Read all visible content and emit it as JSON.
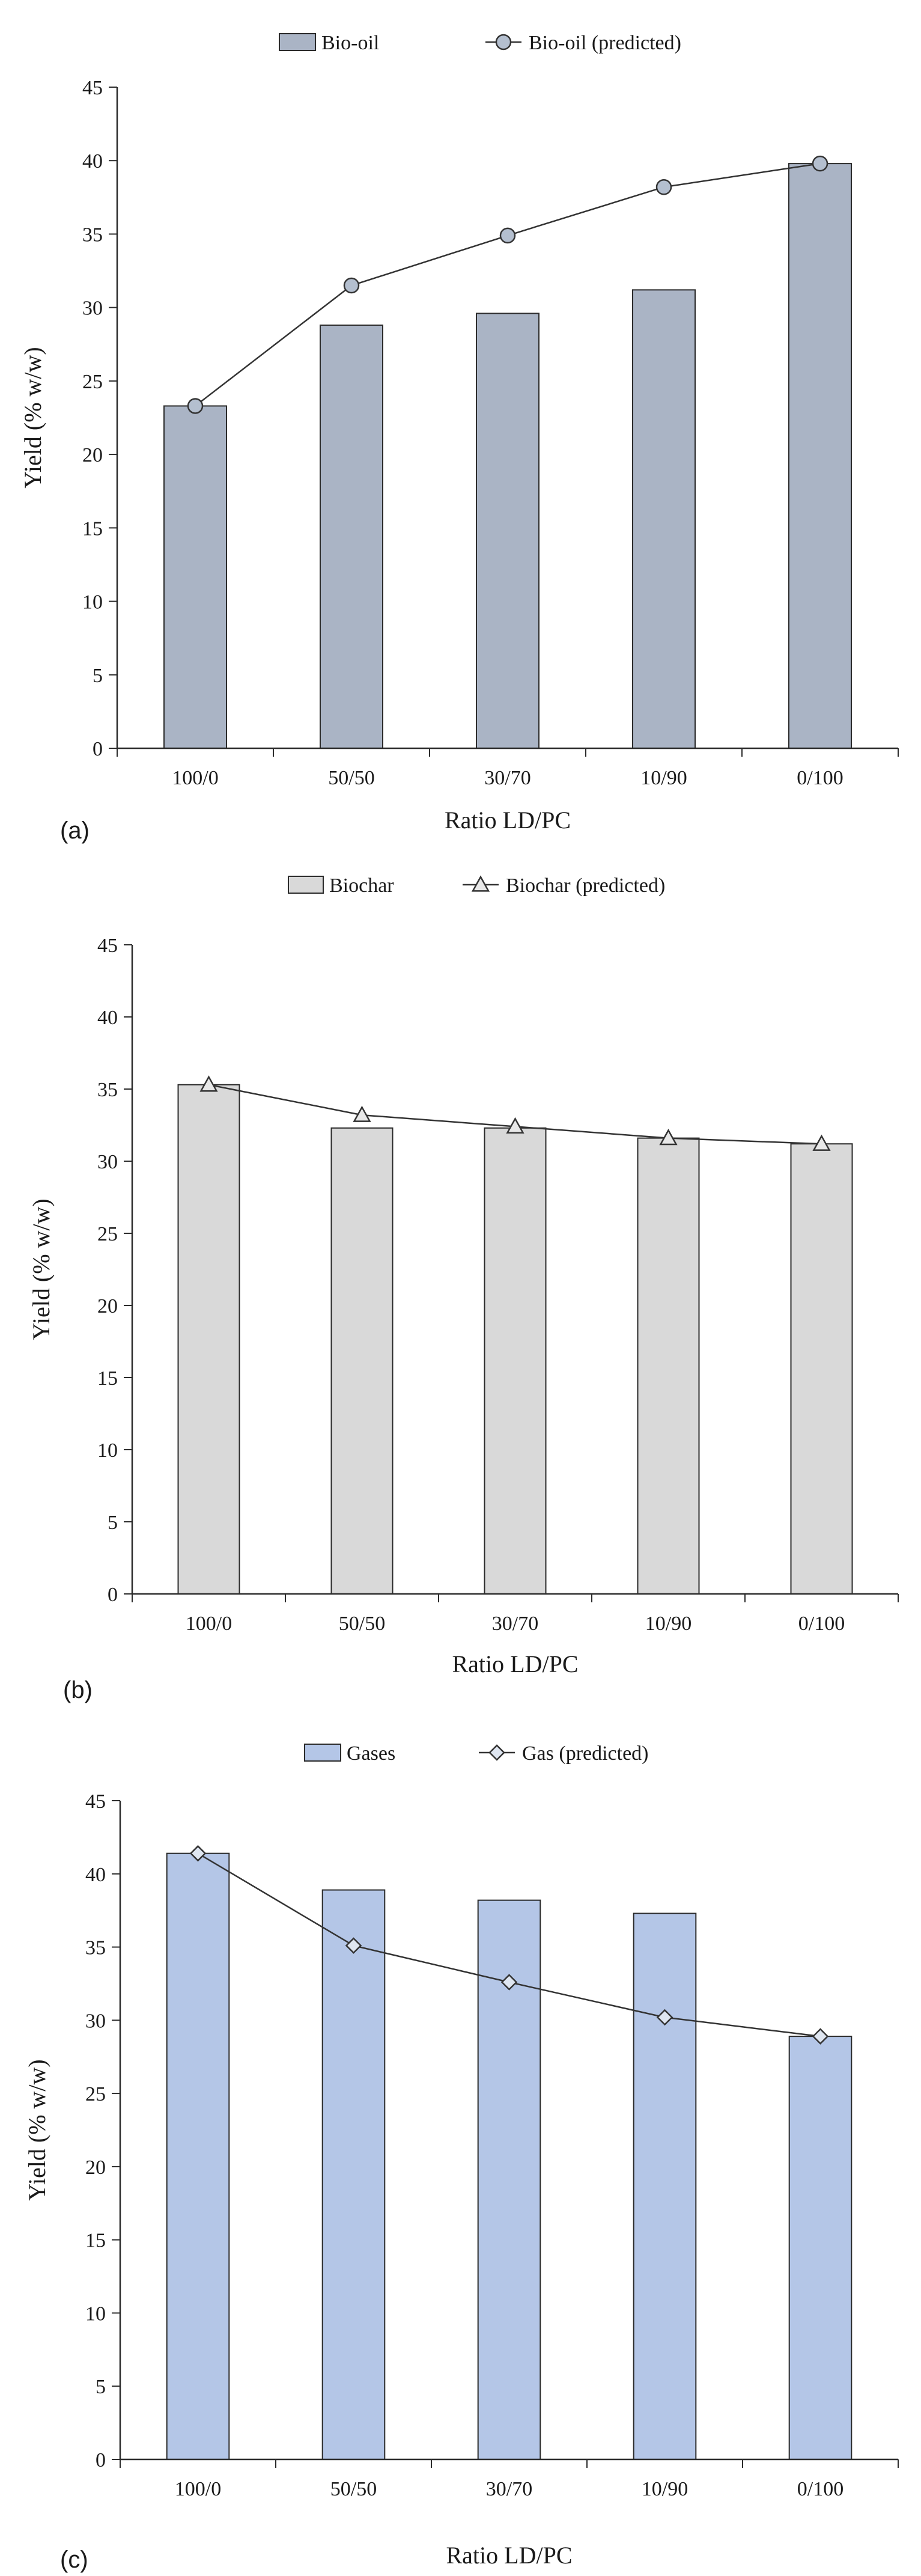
{
  "colors": {
    "axis": "#2b2b2b",
    "line": "#333333",
    "bio_oil_bar": "#aab4c5",
    "bio_oil_marker": "#b4bfcf",
    "biochar_bar": "#d9d9d9",
    "biochar_marker": "#e8e8e8",
    "gas_bar": "#b4c6e7",
    "gas_marker": "#dfe6f1"
  },
  "chart_data": [
    {
      "type": "bar",
      "panel_label": "(a)",
      "categories": [
        "100/0",
        "50/50",
        "30/70",
        "10/90",
        "0/100"
      ],
      "series": [
        {
          "name": "Bio-oil",
          "type": "bar",
          "values": [
            23.3,
            28.8,
            29.6,
            31.2,
            39.8
          ]
        },
        {
          "name": "Bio-oil (predicted)",
          "type": "line",
          "marker": "circle",
          "values": [
            23.3,
            31.5,
            34.9,
            38.2,
            39.8
          ]
        }
      ],
      "xlabel": "Ratio LD/PC",
      "ylabel": "Yield (% w/w)",
      "ylim": [
        0,
        45
      ],
      "yticks": [
        "0",
        "5",
        "10",
        "15",
        "20",
        "25",
        "30",
        "35",
        "40",
        "45"
      ],
      "grid": false,
      "legend_position": "top-center"
    },
    {
      "type": "bar",
      "panel_label": "(b)",
      "categories": [
        "100/0",
        "50/50",
        "30/70",
        "10/90",
        "0/100"
      ],
      "series": [
        {
          "name": "Biochar",
          "type": "bar",
          "values": [
            35.3,
            32.3,
            32.3,
            31.6,
            31.2
          ]
        },
        {
          "name": "Biochar (predicted)",
          "type": "line",
          "marker": "triangle",
          "values": [
            35.3,
            33.2,
            32.4,
            31.6,
            31.2
          ]
        }
      ],
      "xlabel": "Ratio LD/PC",
      "ylabel": "Yield (% w/w)",
      "ylim": [
        0,
        45
      ],
      "yticks": [
        "0",
        "5",
        "10",
        "15",
        "20",
        "25",
        "30",
        "35",
        "40",
        "45"
      ],
      "grid": false,
      "legend_position": "top-center"
    },
    {
      "type": "bar",
      "panel_label": "(c)",
      "categories": [
        "100/0",
        "50/50",
        "30/70",
        "10/90",
        "0/100"
      ],
      "series": [
        {
          "name": "Gases",
          "type": "bar",
          "values": [
            41.4,
            38.9,
            38.2,
            37.3,
            28.9
          ]
        },
        {
          "name": "Gas (predicted)",
          "type": "line",
          "marker": "diamond",
          "values": [
            41.4,
            35.1,
            32.6,
            30.2,
            28.9
          ]
        }
      ],
      "xlabel": "Ratio LD/PC",
      "ylabel": "Yield (% w/w)",
      "ylim": [
        0,
        45
      ],
      "yticks": [
        "0",
        "5",
        "10",
        "15",
        "20",
        "25",
        "30",
        "35",
        "40",
        "45"
      ],
      "grid": false,
      "legend_position": "top-center"
    }
  ]
}
